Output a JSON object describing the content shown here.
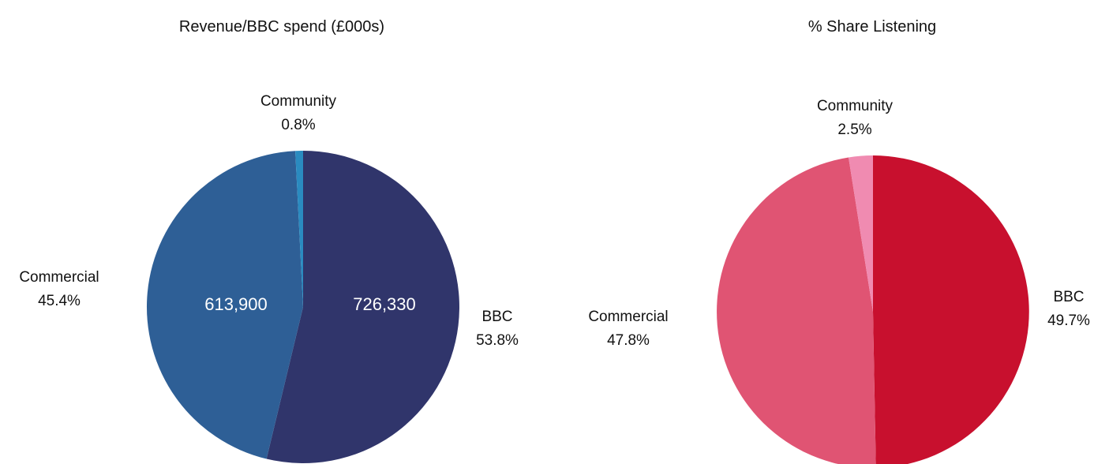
{
  "chart_data": [
    {
      "type": "pie",
      "title": "Revenue/BBC spend (£000s)",
      "slices": [
        {
          "name": "BBC",
          "value": 726330,
          "percent_label": "53.8%",
          "value_label": "726,330",
          "color": "#30356b"
        },
        {
          "name": "Commercial",
          "value": 613900,
          "percent_label": "45.4%",
          "value_label": "613,900",
          "color": "#2e5f96"
        },
        {
          "name": "Community",
          "value": 10800,
          "percent_label": "0.8%",
          "value_label": "",
          "color": "#2a8bc0"
        }
      ]
    },
    {
      "type": "pie",
      "title": "% Share Listening",
      "slices": [
        {
          "name": "BBC",
          "value": 49.7,
          "percent_label": "49.7%",
          "value_label": "",
          "color": "#c8102e"
        },
        {
          "name": "Commercial",
          "value": 47.8,
          "percent_label": "47.8%",
          "value_label": "",
          "color": "#e05473"
        },
        {
          "name": "Community",
          "value": 2.5,
          "percent_label": "2.5%",
          "value_label": "",
          "color": "#f08bb1"
        }
      ]
    }
  ]
}
